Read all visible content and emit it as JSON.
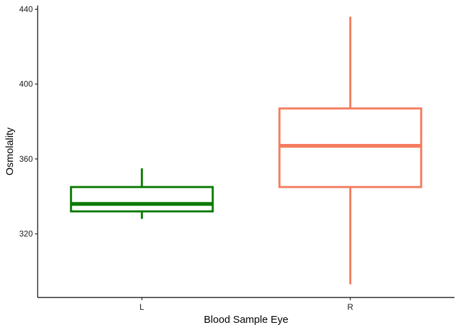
{
  "chart_data": {
    "type": "boxplot",
    "title": "",
    "xlabel": "Blood Sample Eye",
    "ylabel": "Osmolality",
    "ylim": [
      286,
      442
    ],
    "yticks": [
      320,
      360,
      400,
      440
    ],
    "grid": false,
    "categories": [
      "L",
      "R"
    ],
    "boxes": [
      {
        "category": "L",
        "color": "#0a7a00",
        "whisker_low": 328,
        "q1": 332,
        "median": 336,
        "q3": 345,
        "whisker_high": 355
      },
      {
        "category": "R",
        "color": "#f47c5e",
        "whisker_low": 293,
        "q1": 345,
        "median": 367,
        "q3": 387,
        "whisker_high": 436
      }
    ]
  }
}
